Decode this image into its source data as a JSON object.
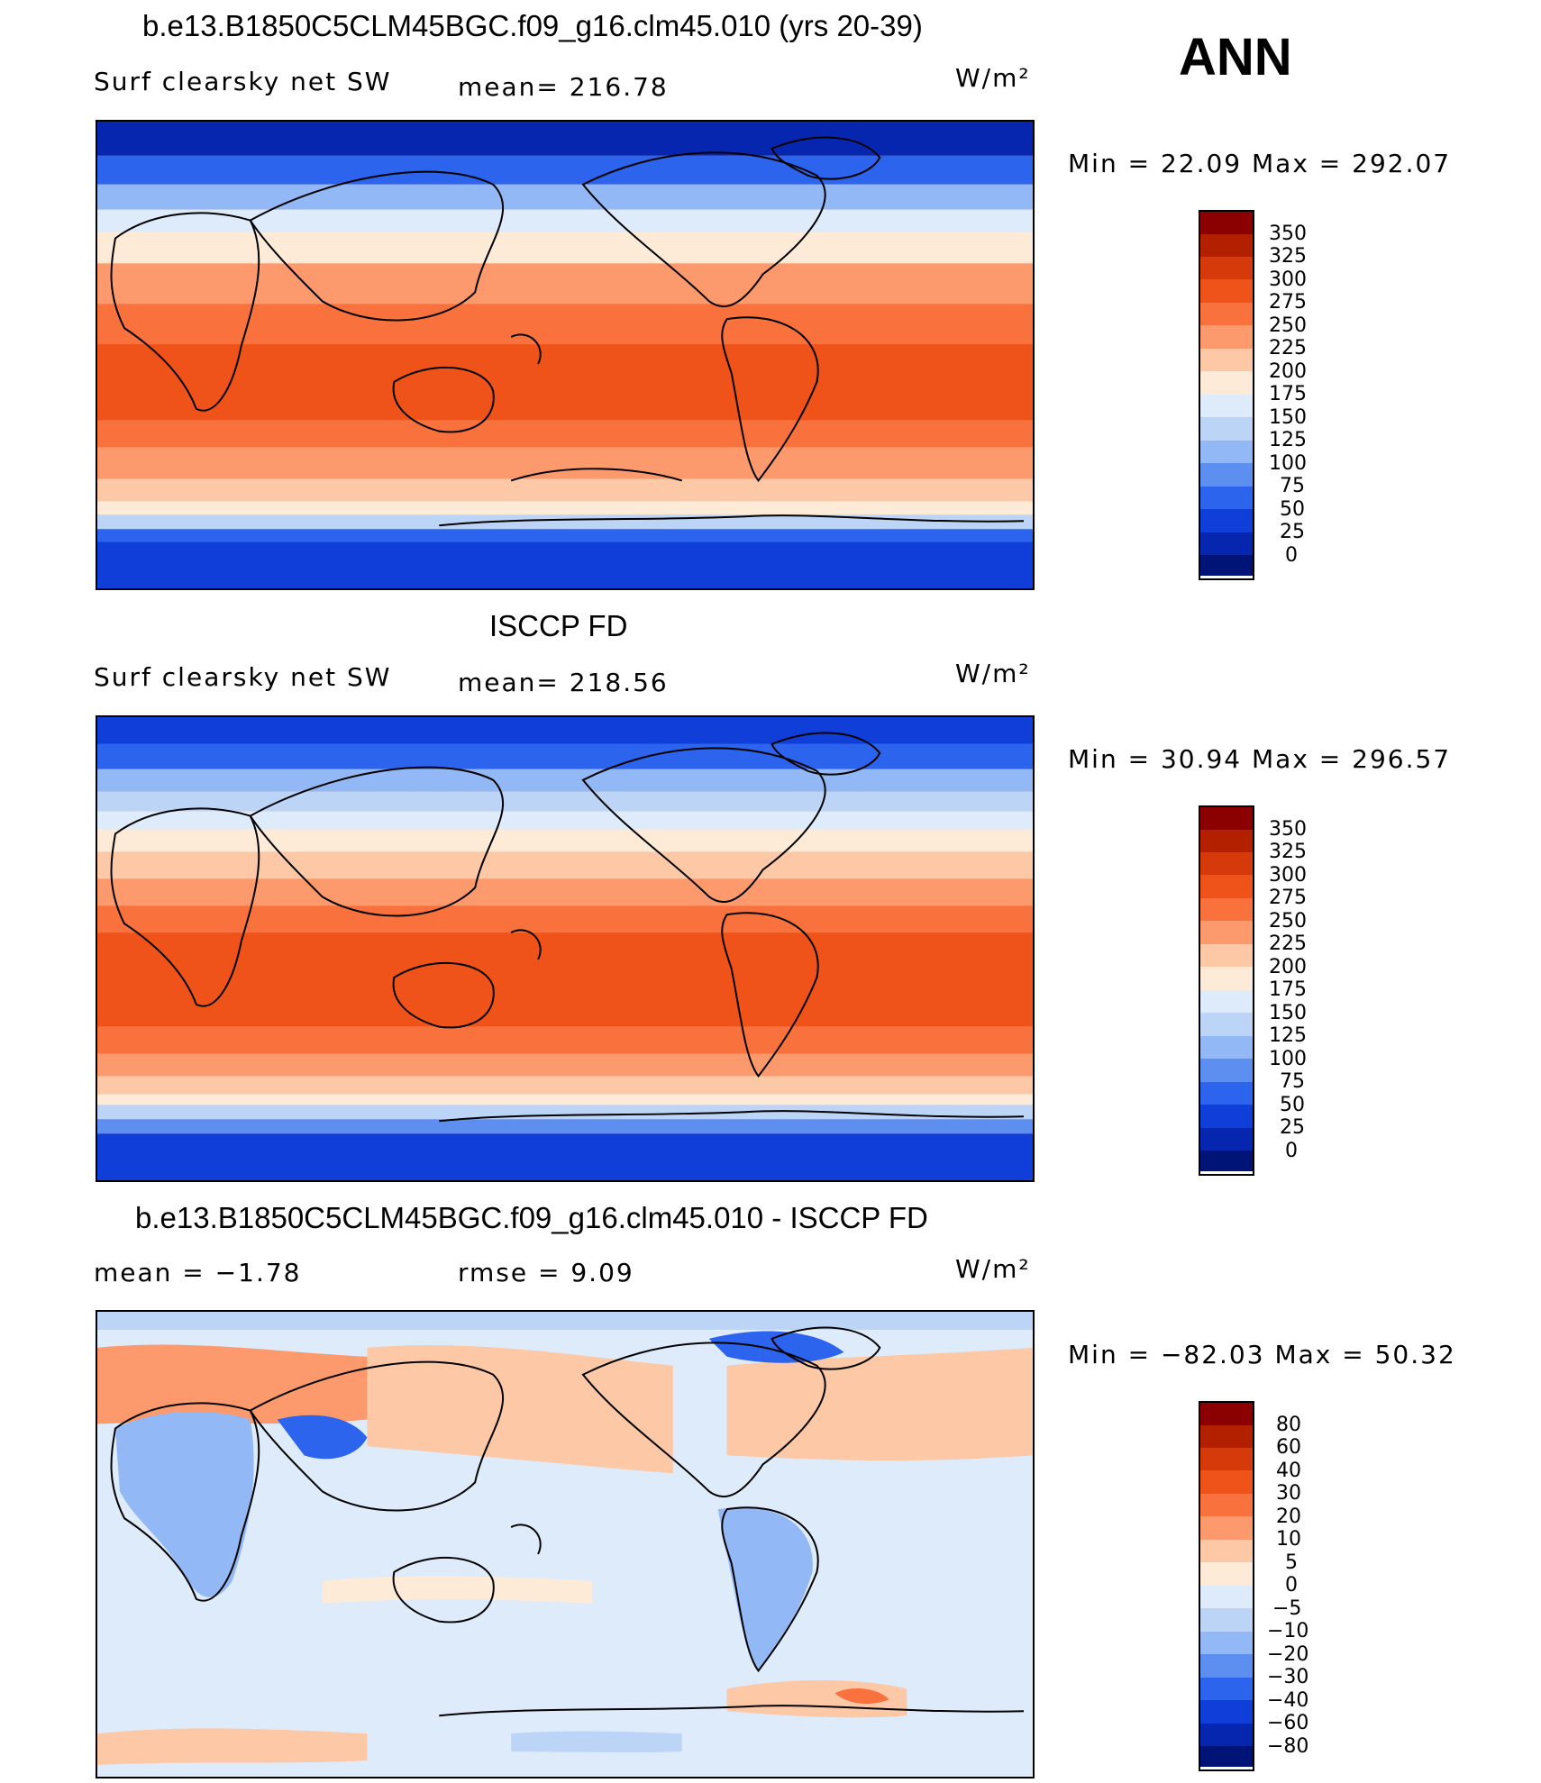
{
  "season": "ANN",
  "panels": [
    {
      "title": "b.e13.B1850C5CLM45BGC.f09_g16.clm45.010 (yrs 20-39)",
      "left_label": "Surf clearsky net SW",
      "mid_label": "mean= 216.78",
      "units": "W/m²",
      "minmax": "Min =   22.09 Max = 292.07",
      "colorbar": {
        "levels": [
          "350",
          "325",
          "300",
          "275",
          "250",
          "225",
          "200",
          "175",
          "150",
          "125",
          "100",
          "75",
          "50",
          "25",
          "0"
        ],
        "colors": [
          "#8b0000",
          "#b22000",
          "#d63a0a",
          "#f0531a",
          "#f9723d",
          "#fc9a6d",
          "#fdc8a6",
          "#fdebd7",
          "#deebfa",
          "#bcd5f7",
          "#92b8f5",
          "#5d8ff0",
          "#2d64ee",
          "#0f3ed9",
          "#0626b0",
          "#001478"
        ]
      }
    },
    {
      "title": "ISCCP FD",
      "left_label": "Surf clearsky net SW",
      "mid_label": "mean= 218.56",
      "units": "W/m²",
      "minmax": "Min =   30.94 Max = 296.57",
      "colorbar": {
        "levels": [
          "350",
          "325",
          "300",
          "275",
          "250",
          "225",
          "200",
          "175",
          "150",
          "125",
          "100",
          "75",
          "50",
          "25",
          "0"
        ],
        "colors": [
          "#8b0000",
          "#b22000",
          "#d63a0a",
          "#f0531a",
          "#f9723d",
          "#fc9a6d",
          "#fdc8a6",
          "#fdebd7",
          "#deebfa",
          "#bcd5f7",
          "#92b8f5",
          "#5d8ff0",
          "#2d64ee",
          "#0f3ed9",
          "#0626b0",
          "#001478"
        ]
      }
    },
    {
      "title": "b.e13.B1850C5CLM45BGC.f09_g16.clm45.010 - ISCCP FD",
      "left_label": "mean =   −1.78",
      "mid_label": "rmse =     9.09",
      "units": "W/m²",
      "minmax": "Min = −82.03 Max =   50.32",
      "colorbar": {
        "levels": [
          "80",
          "60",
          "40",
          "30",
          "20",
          "10",
          "5",
          "0",
          "−5",
          "−10",
          "−20",
          "−30",
          "−40",
          "−60",
          "−80"
        ],
        "colors": [
          "#8b0000",
          "#b22000",
          "#d63a0a",
          "#f0531a",
          "#f9723d",
          "#fc9a6d",
          "#fdc8a6",
          "#fdebd7",
          "#deebfa",
          "#bcd5f7",
          "#92b8f5",
          "#5d8ff0",
          "#2d64ee",
          "#0f3ed9",
          "#0626b0",
          "#001478"
        ]
      }
    }
  ]
}
